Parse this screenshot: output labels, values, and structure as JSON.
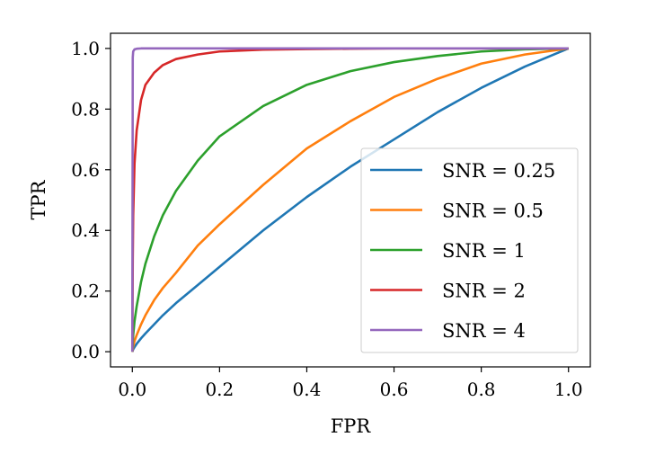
{
  "chart_data": {
    "type": "line",
    "xlabel": "FPR",
    "ylabel": "TPR",
    "xlim": [
      -0.05,
      1.05
    ],
    "ylim": [
      -0.05,
      1.05
    ],
    "xticks": [
      0.0,
      0.2,
      0.4,
      0.6,
      0.8,
      1.0
    ],
    "yticks": [
      0.0,
      0.2,
      0.4,
      0.6,
      0.8,
      1.0
    ],
    "xtick_labels": [
      "0.0",
      "0.2",
      "0.4",
      "0.6",
      "0.8",
      "1.0"
    ],
    "ytick_labels": [
      "0.0",
      "0.2",
      "0.4",
      "0.6",
      "0.8",
      "1.0"
    ],
    "grid": false,
    "legend_position": "lower-right",
    "x": [
      0.0,
      0.001,
      0.002,
      0.005,
      0.01,
      0.02,
      0.03,
      0.05,
      0.07,
      0.1,
      0.15,
      0.2,
      0.3,
      0.4,
      0.5,
      0.6,
      0.7,
      0.8,
      0.9,
      1.0
    ],
    "series": [
      {
        "name": "SNR = 0.25",
        "color": "#1f77b4",
        "values": [
          0.0,
          0.004,
          0.008,
          0.015,
          0.026,
          0.044,
          0.06,
          0.09,
          0.12,
          0.16,
          0.22,
          0.28,
          0.4,
          0.51,
          0.61,
          0.7,
          0.79,
          0.87,
          0.94,
          1.0
        ]
      },
      {
        "name": "SNR = 0.5",
        "color": "#ff7f0e",
        "values": [
          0.0,
          0.01,
          0.018,
          0.035,
          0.055,
          0.09,
          0.12,
          0.17,
          0.21,
          0.26,
          0.35,
          0.42,
          0.55,
          0.67,
          0.76,
          0.84,
          0.9,
          0.95,
          0.98,
          1.0
        ]
      },
      {
        "name": "SNR = 1",
        "color": "#2ca02c",
        "values": [
          0.0,
          0.03,
          0.055,
          0.1,
          0.15,
          0.23,
          0.29,
          0.38,
          0.45,
          0.53,
          0.63,
          0.71,
          0.81,
          0.88,
          0.925,
          0.955,
          0.975,
          0.99,
          0.997,
          1.0
        ]
      },
      {
        "name": "SNR = 2",
        "color": "#d62728",
        "values": [
          0.0,
          0.3,
          0.45,
          0.62,
          0.73,
          0.83,
          0.88,
          0.92,
          0.945,
          0.965,
          0.98,
          0.99,
          0.996,
          0.998,
          0.999,
          1.0,
          1.0,
          1.0,
          1.0,
          1.0
        ]
      },
      {
        "name": "SNR = 4",
        "color": "#9467bd",
        "values": [
          0.0,
          0.97,
          0.99,
          0.997,
          0.999,
          1.0,
          1.0,
          1.0,
          1.0,
          1.0,
          1.0,
          1.0,
          1.0,
          1.0,
          1.0,
          1.0,
          1.0,
          1.0,
          1.0,
          1.0
        ]
      }
    ]
  }
}
